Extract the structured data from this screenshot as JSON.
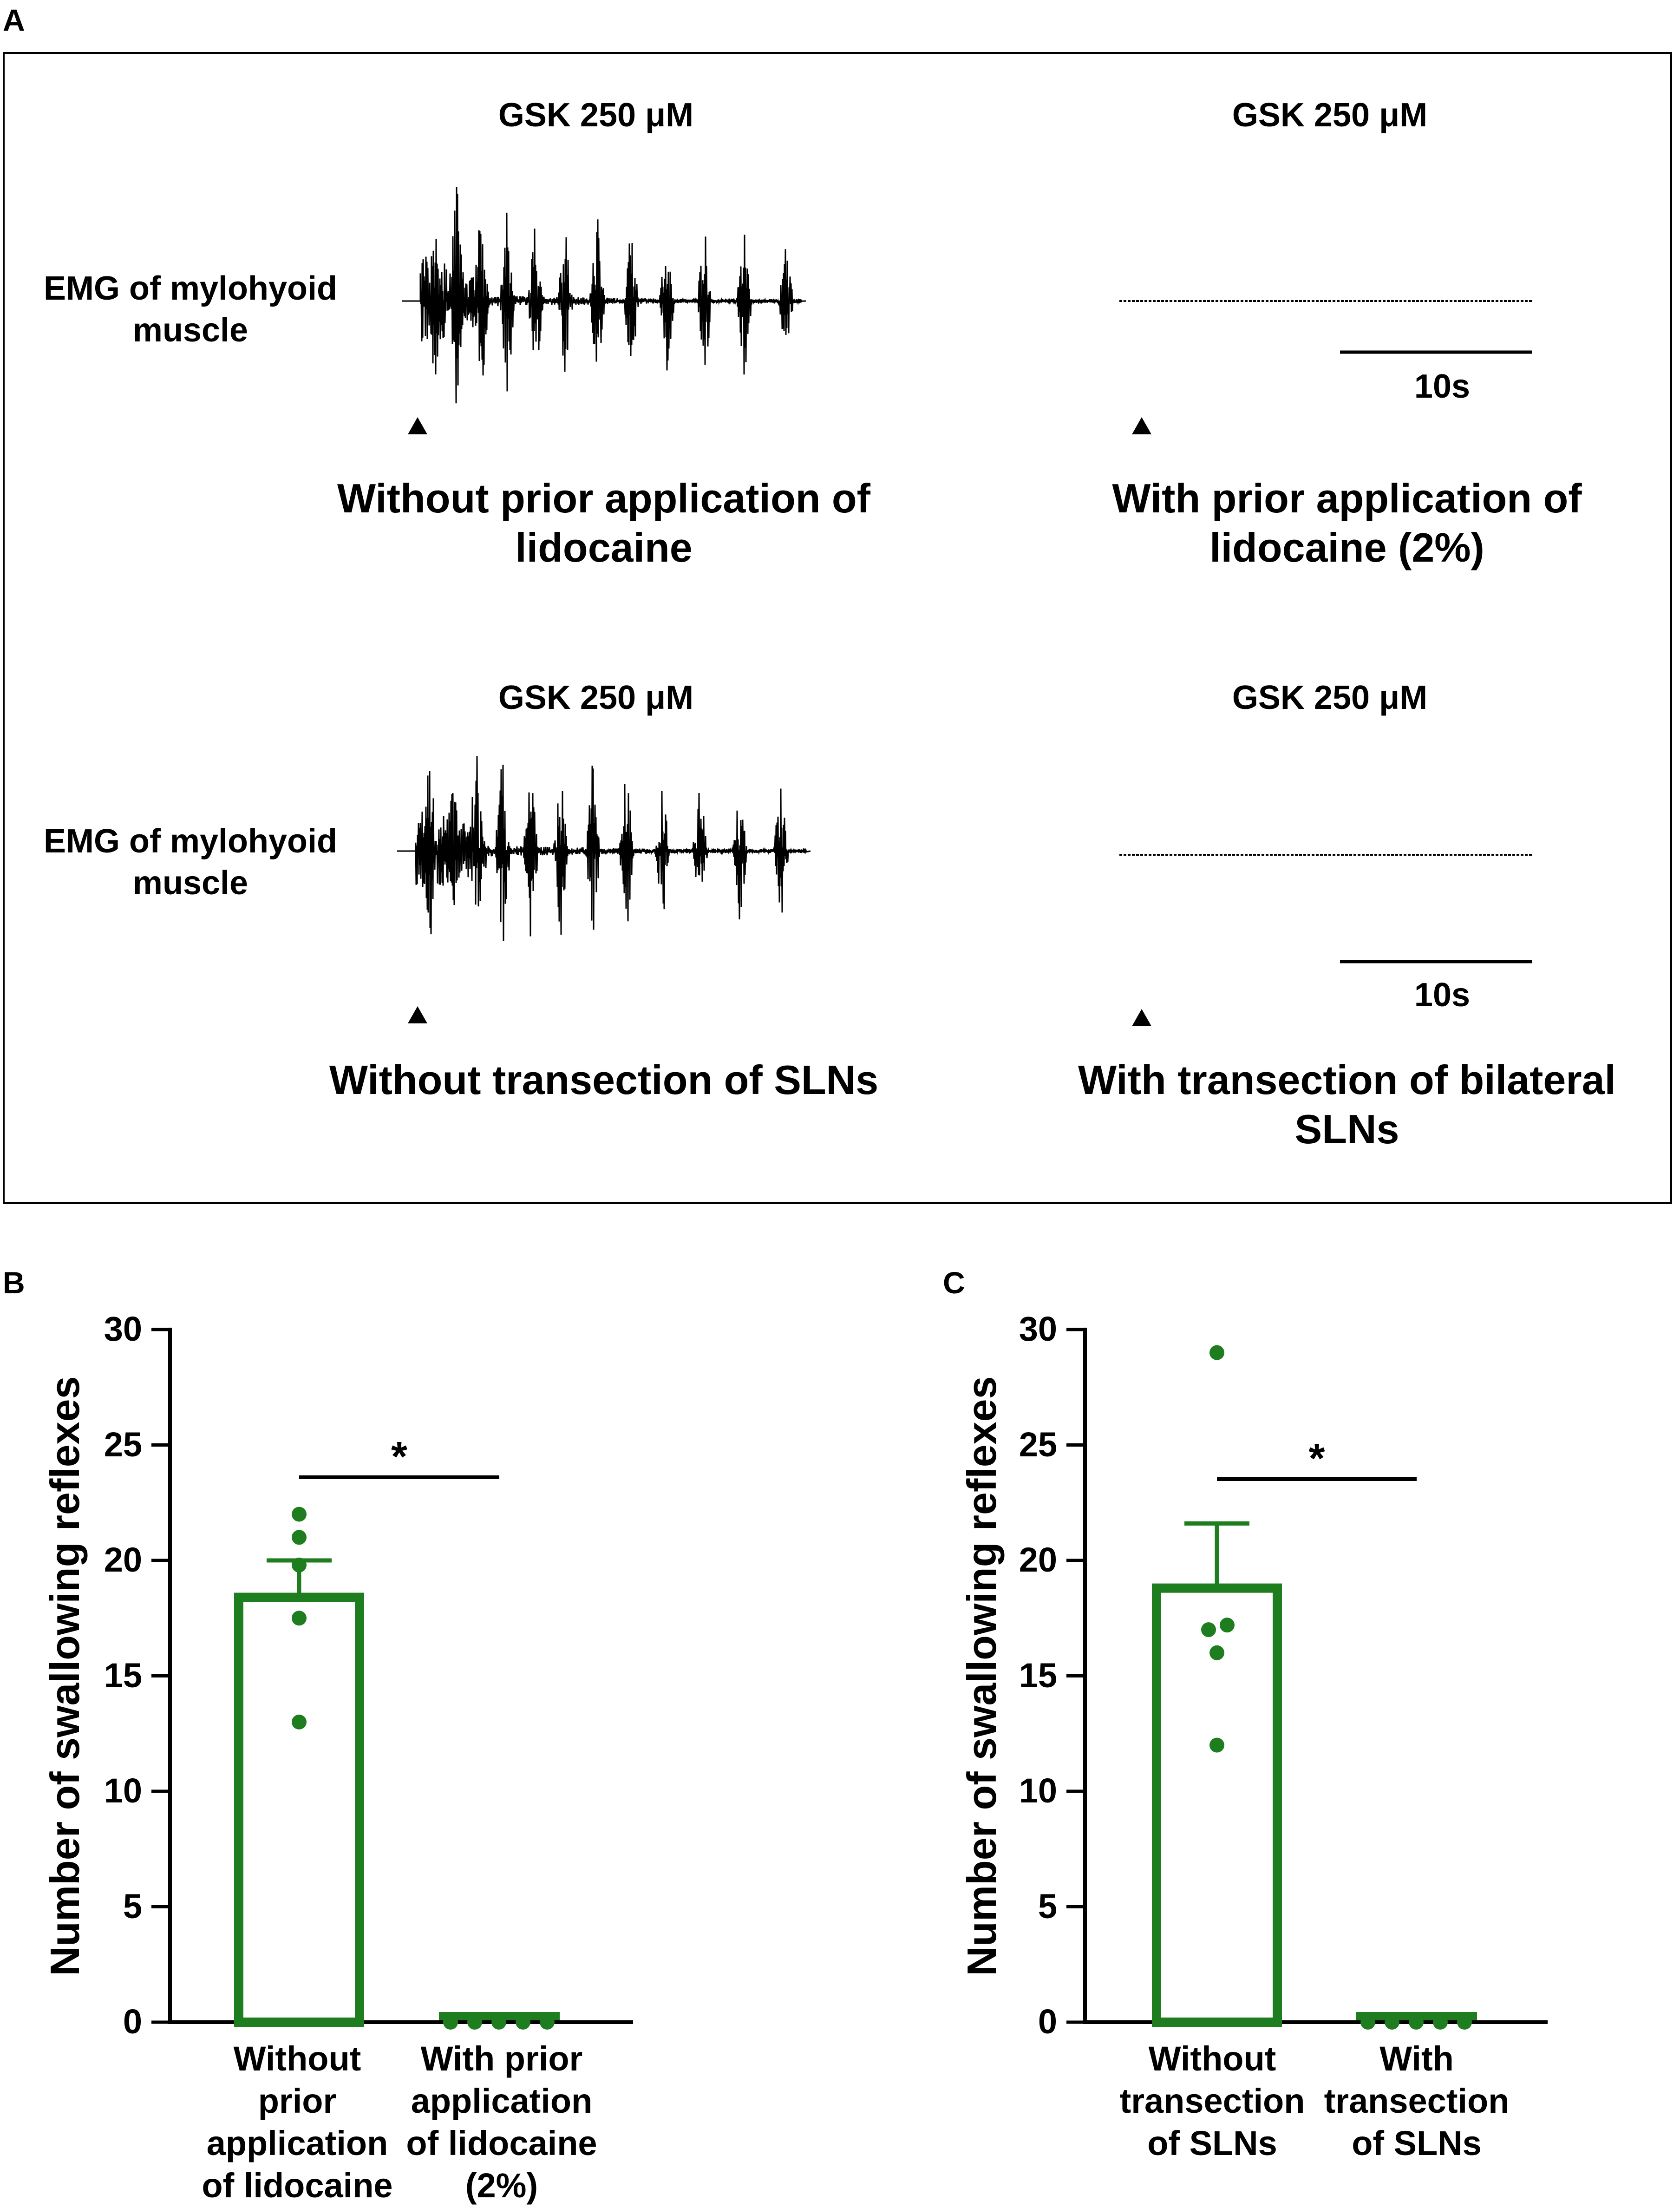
{
  "panel_a": {
    "letter": "A",
    "emg_label": "EMG of mylohyoid muscle",
    "scale_label": "10s",
    "rows": [
      {
        "left": {
          "header": "GSK 250 μM",
          "caption": "Without prior application of lidocaine"
        },
        "right": {
          "header": "GSK 250 μM",
          "caption": "With prior application of lidocaine (2%)"
        }
      },
      {
        "left": {
          "header": "GSK 250 μM",
          "caption": "Without transection of SLNs"
        },
        "right": {
          "header": "GSK 250 μM",
          "caption": "With transection of bilateral SLNs"
        }
      }
    ]
  },
  "colors": {
    "bar": "#1e7d1e",
    "trace": "#000000"
  },
  "chart_data": [
    {
      "panel": "B",
      "type": "bar",
      "ylabel": "Number of swallowing reflexes",
      "ylim": [
        0,
        30
      ],
      "yticks": [
        0,
        5,
        10,
        15,
        20,
        25,
        30
      ],
      "categories": [
        "Without\nprior\napplication\nof lidocaine",
        "With prior\napplication\nof lidocaine\n(2%)"
      ],
      "means": [
        18.4,
        0
      ],
      "sem": [
        1.6,
        0
      ],
      "points": [
        [
          22,
          21,
          19.8,
          17.5,
          13
        ],
        [
          0,
          0,
          0,
          0,
          0
        ]
      ],
      "significance": "*"
    },
    {
      "panel": "C",
      "type": "bar",
      "ylabel": "Number of swallowing reflexes",
      "ylim": [
        0,
        30
      ],
      "yticks": [
        0,
        5,
        10,
        15,
        20,
        25,
        30
      ],
      "categories": [
        "Without\ntransection\nof SLNs",
        "With\ntransection\nof SLNs"
      ],
      "means": [
        18.8,
        0
      ],
      "sem": [
        2.8,
        0
      ],
      "points": [
        [
          29,
          17.2,
          17,
          16,
          12
        ],
        [
          0,
          0,
          0,
          0,
          0
        ]
      ],
      "significance": "*"
    }
  ]
}
